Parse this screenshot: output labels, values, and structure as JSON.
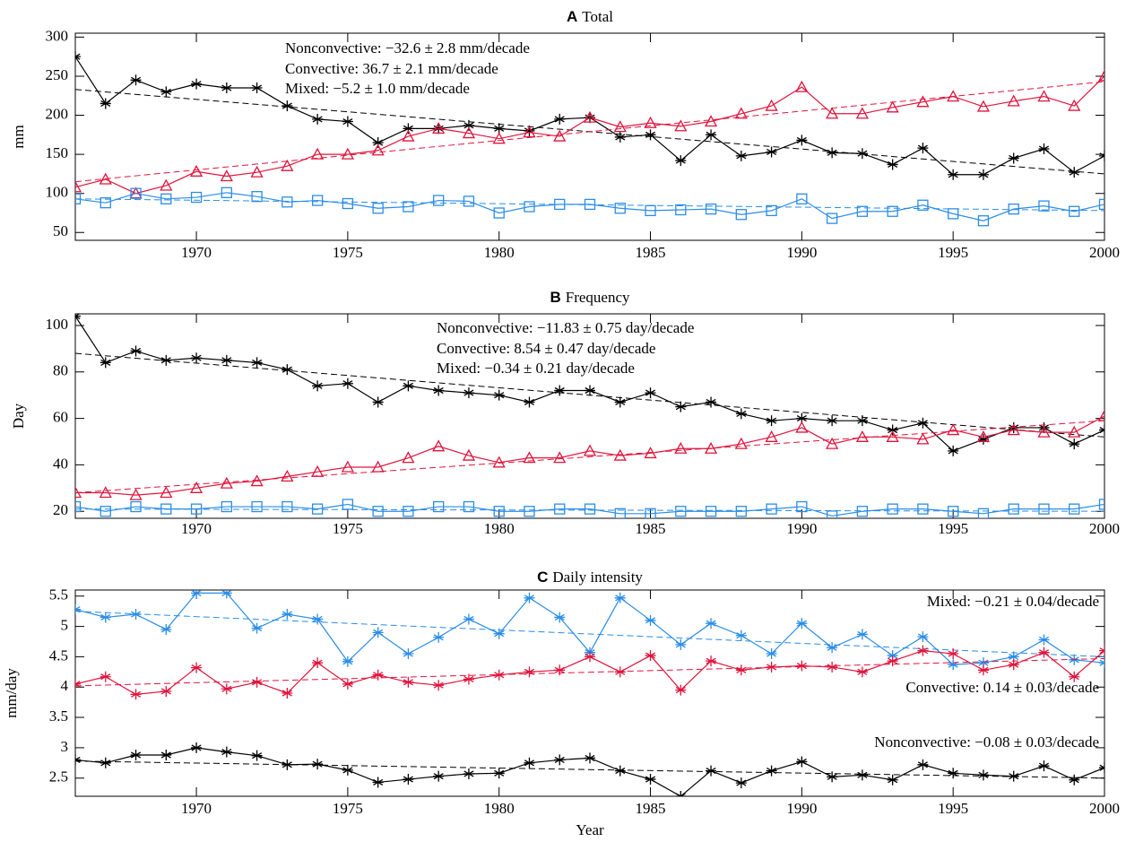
{
  "chart_data": [
    {
      "type": "line",
      "panel_label": "A",
      "title": "Total",
      "y_label": "mm",
      "x": [
        1966,
        1967,
        1968,
        1969,
        1970,
        1971,
        1972,
        1973,
        1974,
        1975,
        1976,
        1977,
        1978,
        1979,
        1980,
        1981,
        1982,
        1983,
        1984,
        1985,
        1986,
        1987,
        1988,
        1989,
        1990,
        1991,
        1992,
        1993,
        1994,
        1995,
        1996,
        1997,
        1998,
        1999,
        2000
      ],
      "xlim": [
        1966,
        2000
      ],
      "xticks": [
        1970,
        1975,
        1980,
        1985,
        1990,
        1995,
        2000
      ],
      "ylim": [
        40,
        305
      ],
      "yticks": [
        50,
        100,
        150,
        200,
        250,
        300
      ],
      "series": [
        {
          "annotation": "Nonconvective: −32.6 ± 2.8 mm/decade",
          "color": "#000000",
          "marker": "asterisk",
          "trend": [
            233,
            125
          ],
          "values": [
            275,
            215,
            245,
            230,
            240,
            235,
            235,
            212,
            195,
            192,
            165,
            183,
            183,
            187,
            183,
            180,
            195,
            197,
            172,
            175,
            142,
            175,
            148,
            153,
            168,
            152,
            151,
            137,
            158,
            124,
            124,
            145,
            157,
            127,
            148
          ]
        },
        {
          "annotation": "Convective: 36.7 ± 2.1 mm/decade",
          "color": "#e0143c",
          "marker": "triangle",
          "trend": [
            115,
            243
          ],
          "values": [
            108,
            118,
            100,
            110,
            128,
            122,
            127,
            135,
            150,
            150,
            155,
            173,
            183,
            177,
            170,
            178,
            173,
            197,
            185,
            190,
            186,
            192,
            202,
            212,
            236,
            202,
            202,
            210,
            217,
            224,
            211,
            218,
            224,
            212,
            250
          ]
        },
        {
          "annotation": "Mixed: −5.2 ± 1.0 mm/decade",
          "color": "#2a8de8",
          "marker": "square",
          "trend": [
            93,
            78
          ],
          "values": [
            93,
            88,
            100,
            93,
            95,
            101,
            96,
            89,
            91,
            87,
            81,
            83,
            91,
            90,
            75,
            83,
            86,
            86,
            81,
            78,
            79,
            80,
            73,
            78,
            93,
            68,
            77,
            77,
            85,
            74,
            65,
            80,
            84,
            77,
            86
          ]
        }
      ]
    },
    {
      "type": "line",
      "panel_label": "B",
      "title": "Frequency",
      "y_label": "Day",
      "x": [
        1966,
        1967,
        1968,
        1969,
        1970,
        1971,
        1972,
        1973,
        1974,
        1975,
        1976,
        1977,
        1978,
        1979,
        1980,
        1981,
        1982,
        1983,
        1984,
        1985,
        1986,
        1987,
        1988,
        1989,
        1990,
        1991,
        1992,
        1993,
        1994,
        1995,
        1996,
        1997,
        1998,
        1999,
        2000
      ],
      "xlim": [
        1966,
        2000
      ],
      "xticks": [
        1970,
        1975,
        1980,
        1985,
        1990,
        1995,
        2000
      ],
      "ylim": [
        17,
        105
      ],
      "yticks": [
        20,
        40,
        60,
        80,
        100
      ],
      "series": [
        {
          "annotation": "Nonconvective: −11.83 ± 0.75 day/decade",
          "color": "#000000",
          "marker": "asterisk",
          "trend": [
            88,
            52
          ],
          "values": [
            104,
            84,
            89,
            85,
            86,
            85,
            84,
            81,
            74,
            75,
            67,
            74,
            72,
            71,
            70,
            67,
            72,
            72,
            67,
            71,
            65,
            67,
            62,
            59,
            60,
            59,
            59,
            55,
            58,
            46,
            51,
            56,
            56,
            49,
            55
          ]
        },
        {
          "annotation": "Convective: 8.54 ± 0.47 day/decade",
          "color": "#e0143c",
          "marker": "triangle",
          "trend": [
            28,
            59
          ],
          "values": [
            28,
            28,
            27,
            28,
            30,
            32,
            33,
            35,
            37,
            39,
            39,
            43,
            48,
            44,
            41,
            43,
            43,
            46,
            44,
            45,
            47,
            47,
            49,
            52,
            56,
            49,
            52,
            52,
            51,
            55,
            52,
            55,
            54,
            54,
            61
          ]
        },
        {
          "annotation": "Mixed: −0.34 ± 0.21 day/decade",
          "color": "#2a8de8",
          "marker": "square",
          "trend": [
            21,
            20
          ],
          "values": [
            22,
            20,
            22,
            21,
            21,
            22,
            22,
            22,
            21,
            23,
            20,
            20,
            22,
            22,
            20,
            20,
            21,
            21,
            19,
            19,
            20,
            20,
            20,
            21,
            22,
            18,
            20,
            21,
            21,
            20,
            19,
            21,
            21,
            21,
            23
          ]
        }
      ]
    },
    {
      "type": "line",
      "panel_label": "C",
      "title": "Daily intensity",
      "y_label": "mm/day",
      "x_label": "Year",
      "x": [
        1966,
        1967,
        1968,
        1969,
        1970,
        1971,
        1972,
        1973,
        1974,
        1975,
        1976,
        1977,
        1978,
        1979,
        1980,
        1981,
        1982,
        1983,
        1984,
        1985,
        1986,
        1987,
        1988,
        1989,
        1990,
        1991,
        1992,
        1993,
        1994,
        1995,
        1996,
        1997,
        1998,
        1999,
        2000
      ],
      "xlim": [
        1966,
        2000
      ],
      "xticks": [
        1970,
        1975,
        1980,
        1985,
        1990,
        1995,
        2000
      ],
      "ylim": [
        2.2,
        5.6
      ],
      "yticks": [
        2.5,
        3.0,
        3.5,
        4.0,
        4.5,
        5.0,
        5.5
      ],
      "series": [
        {
          "annotation": "Mixed: −0.21 ± 0.04/decade",
          "color": "#2a8de8",
          "marker": "asterisk",
          "trend": [
            5.25,
            4.5
          ],
          "values": [
            5.28,
            5.15,
            5.2,
            4.95,
            5.55,
            5.55,
            4.97,
            5.2,
            5.12,
            4.42,
            4.9,
            4.55,
            4.82,
            5.12,
            4.88,
            5.47,
            5.15,
            4.57,
            5.47,
            5.1,
            4.7,
            5.05,
            4.85,
            4.55,
            5.05,
            4.65,
            4.87,
            4.52,
            4.83,
            4.37,
            4.4,
            4.5,
            4.78,
            4.45,
            4.4
          ]
        },
        {
          "annotation": "Convective: 0.14 ± 0.03/decade",
          "color": "#e0143c",
          "marker": "asterisk",
          "trend": [
            4.02,
            4.47
          ],
          "values": [
            4.05,
            4.17,
            3.88,
            3.93,
            4.32,
            3.97,
            4.08,
            3.9,
            4.4,
            4.05,
            4.2,
            4.08,
            4.03,
            4.13,
            4.2,
            4.25,
            4.28,
            4.5,
            4.25,
            4.52,
            3.95,
            4.43,
            4.28,
            4.33,
            4.35,
            4.33,
            4.25,
            4.43,
            4.6,
            4.55,
            4.28,
            4.37,
            4.57,
            4.17,
            4.6
          ]
        },
        {
          "annotation": "Nonconvective: −0.08 ± 0.03/decade",
          "color": "#000000",
          "marker": "asterisk",
          "trend": [
            2.78,
            2.5
          ],
          "values": [
            2.8,
            2.75,
            2.88,
            2.88,
            3.0,
            2.93,
            2.87,
            2.72,
            2.73,
            2.63,
            2.43,
            2.48,
            2.53,
            2.57,
            2.58,
            2.75,
            2.8,
            2.83,
            2.62,
            2.48,
            2.2,
            2.62,
            2.42,
            2.62,
            2.77,
            2.52,
            2.55,
            2.47,
            2.72,
            2.58,
            2.55,
            2.53,
            2.7,
            2.47,
            2.67
          ]
        }
      ]
    }
  ]
}
